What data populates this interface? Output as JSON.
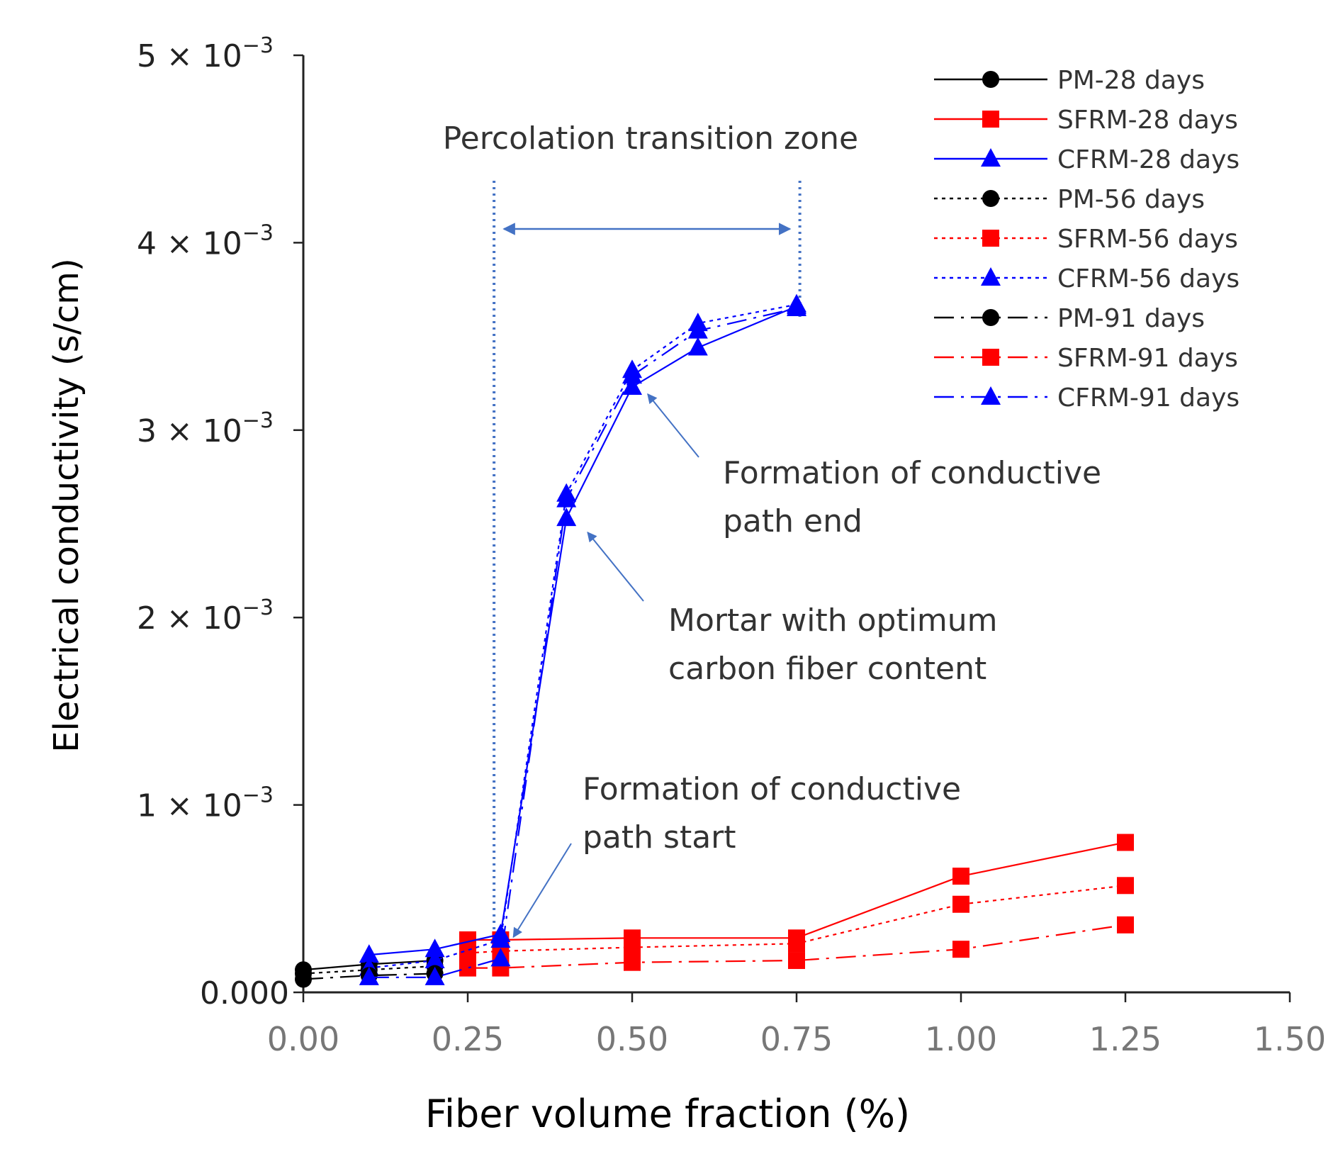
{
  "chart_data": {
    "type": "line",
    "xlabel": "Fiber volume fraction (%)",
    "ylabel": "Electrical conductivity (s/cm)",
    "xlim": [
      0,
      1.5
    ],
    "ylim": [
      0,
      0.005
    ],
    "x_ticks": [
      {
        "value": 0.0,
        "label": "0.00"
      },
      {
        "value": 0.25,
        "label": "0.25"
      },
      {
        "value": 0.5,
        "label": "0.50"
      },
      {
        "value": 0.75,
        "label": "0.75"
      },
      {
        "value": 1.0,
        "label": "1.00"
      },
      {
        "value": 1.25,
        "label": "1.25"
      },
      {
        "value": 1.5,
        "label": "1.50"
      }
    ],
    "y_ticks": [
      {
        "value": 0.0,
        "label": "0.000",
        "exp": ""
      },
      {
        "value": 0.001,
        "label": "1 × 10",
        "exp": "−3"
      },
      {
        "value": 0.002,
        "label": "2 × 10",
        "exp": "−3"
      },
      {
        "value": 0.003,
        "label": "3 × 10",
        "exp": "−3"
      },
      {
        "value": 0.004,
        "label": "4 × 10",
        "exp": "−3"
      },
      {
        "value": 0.005,
        "label": "5 × 10",
        "exp": "−3"
      }
    ],
    "grid": false,
    "legend_position": "top-right",
    "colors": {
      "PM": "#000000",
      "SFRM": "#ff0000",
      "CFRM": "#0000ff",
      "annotation": "#4472c4"
    },
    "series": [
      {
        "name": "PM-28 days",
        "group": "PM",
        "marker": "circle",
        "dash": "solid",
        "x": [
          0,
          0.1,
          0.2
        ],
        "y": [
          0.00012,
          0.00015,
          0.00017
        ]
      },
      {
        "name": "SFRM-28 days",
        "group": "SFRM",
        "marker": "square",
        "dash": "solid",
        "x": [
          0.25,
          0.3,
          0.5,
          0.75,
          1.0,
          1.25
        ],
        "y": [
          0.00028,
          0.00028,
          0.00029,
          0.00029,
          0.00062,
          0.0008
        ]
      },
      {
        "name": "CFRM-28 days",
        "group": "CFRM",
        "marker": "triangle",
        "dash": "solid",
        "x": [
          0.1,
          0.2,
          0.3,
          0.4,
          0.5,
          0.6,
          0.75
        ],
        "y": [
          0.0002,
          0.00023,
          0.00031,
          0.00253,
          0.00323,
          0.00344,
          0.00366
        ]
      },
      {
        "name": "PM-56 days",
        "group": "PM",
        "marker": "circle",
        "dash": "dotted",
        "x": [
          0,
          0.1,
          0.2
        ],
        "y": [
          0.0001,
          0.00012,
          0.00014
        ]
      },
      {
        "name": "SFRM-56 days",
        "group": "SFRM",
        "marker": "square",
        "dash": "dotted",
        "x": [
          0.25,
          0.3,
          0.5,
          0.75,
          1.0,
          1.25
        ],
        "y": [
          0.00021,
          0.00022,
          0.00024,
          0.00026,
          0.00047,
          0.00057
        ]
      },
      {
        "name": "CFRM-56 days",
        "group": "CFRM",
        "marker": "triangle",
        "dash": "dotted",
        "x": [
          0.1,
          0.2,
          0.3,
          0.4,
          0.5,
          0.6,
          0.75
        ],
        "y": [
          0.00013,
          0.00017,
          0.00028,
          0.00266,
          0.00332,
          0.00357,
          0.00367
        ]
      },
      {
        "name": "PM-91 days",
        "group": "PM",
        "marker": "circle",
        "dash": "dashdot",
        "x": [
          0,
          0.1,
          0.2
        ],
        "y": [
          7e-05,
          9e-05,
          0.0001
        ]
      },
      {
        "name": "SFRM-91 days",
        "group": "SFRM",
        "marker": "square",
        "dash": "dashdot",
        "x": [
          0.25,
          0.3,
          0.5,
          0.75,
          1.0,
          1.25
        ],
        "y": [
          0.00013,
          0.00013,
          0.00016,
          0.00017,
          0.00023,
          0.00036
        ]
      },
      {
        "name": "CFRM-91 days",
        "group": "CFRM",
        "marker": "triangle",
        "dash": "dashdot",
        "x": [
          0.1,
          0.2,
          0.3,
          0.4,
          0.5,
          0.6,
          0.75
        ],
        "y": [
          8e-05,
          8e-05,
          0.00018,
          0.00263,
          0.00329,
          0.00353,
          0.00365
        ]
      }
    ],
    "annotations": {
      "zone_label": "Percolation transition zone",
      "zone_x": [
        0.29,
        0.755
      ],
      "end_label": [
        "Formation of conductive",
        "path end"
      ],
      "end_point": [
        0.5,
        0.00323
      ],
      "optimum_label": [
        "Mortar with optimum",
        "carbon fiber content"
      ],
      "optimum_point": [
        0.4,
        0.00253
      ],
      "start_label": [
        "Formation of conductive",
        "path start"
      ],
      "start_point": [
        0.3,
        0.00031
      ]
    }
  }
}
